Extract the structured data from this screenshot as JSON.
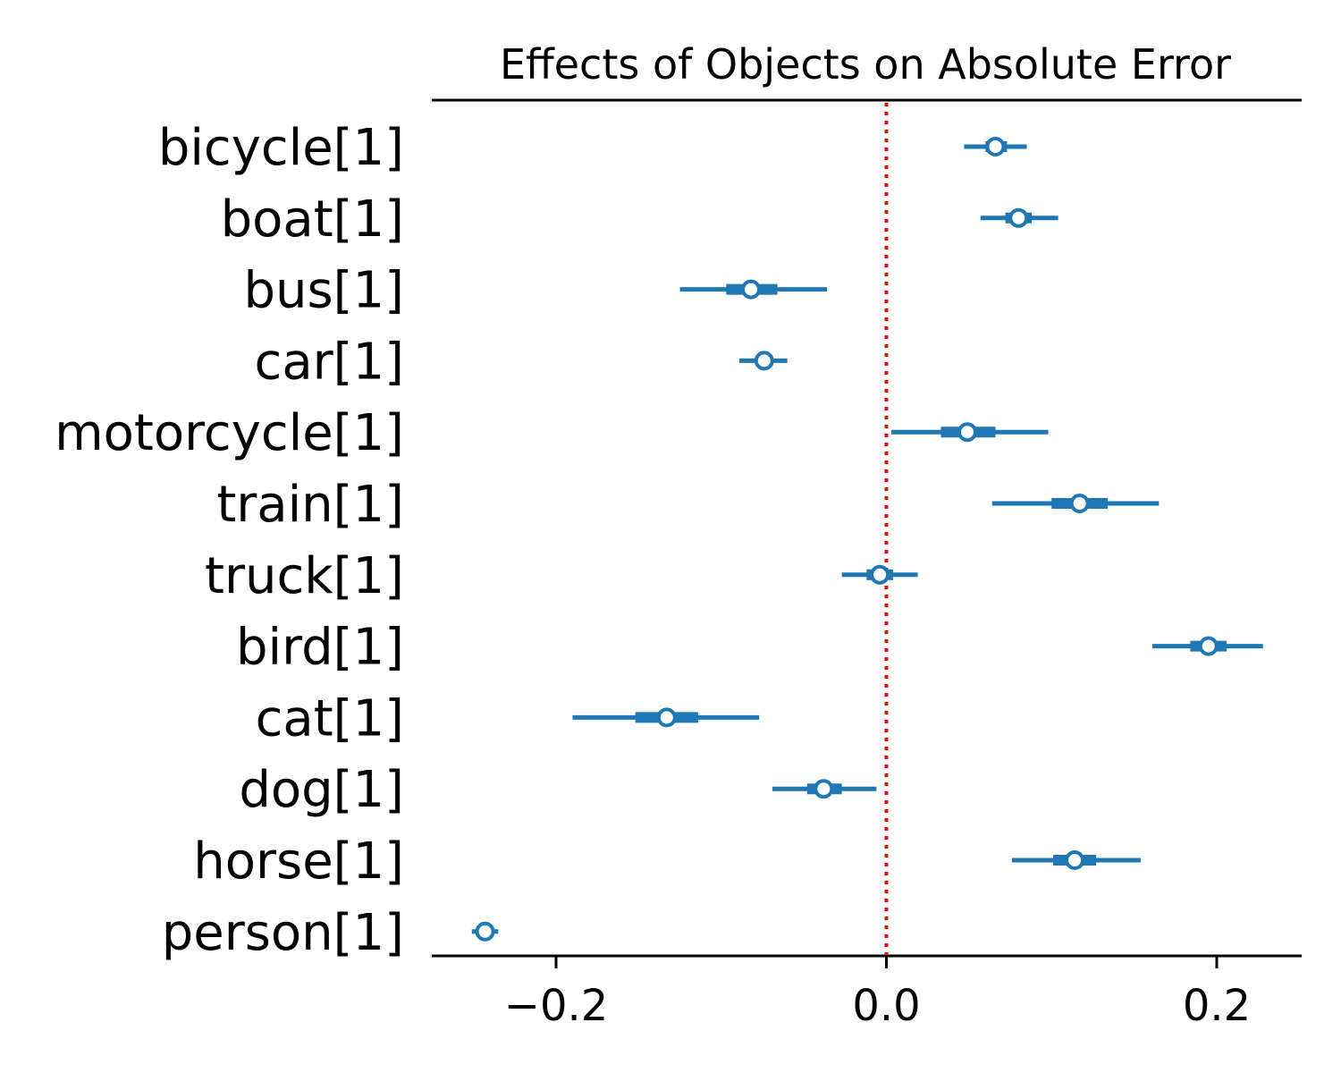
{
  "chart_data": {
    "type": "forest",
    "title": "Effects of Objects on Absolute Error",
    "xlabel": "",
    "ylabel": "",
    "xlim": [
      -0.27,
      0.25
    ],
    "xticks": [
      -0.2,
      0.0,
      0.2
    ],
    "xtick_labels": [
      "−0.2",
      "0.0",
      "0.2"
    ],
    "reference_line": {
      "x": 0.0,
      "style": "dotted",
      "color": "#ff0000"
    },
    "grid": false,
    "color": "#1f77b4",
    "categories": [
      "bicycle[1]",
      "boat[1]",
      "bus[1]",
      "car[1]",
      "motorcycle[1]",
      "train[1]",
      "truck[1]",
      "bird[1]",
      "cat[1]",
      "dog[1]",
      "horse[1]",
      "person[1]"
    ],
    "points": [
      {
        "name": "bicycle[1]",
        "mean": 0.066,
        "hdi_low": 0.047,
        "hdi_high": 0.085,
        "iqr_low": 0.06,
        "iqr_high": 0.073
      },
      {
        "name": "boat[1]",
        "mean": 0.08,
        "hdi_low": 0.057,
        "hdi_high": 0.104,
        "iqr_low": 0.072,
        "iqr_high": 0.088
      },
      {
        "name": "bus[1]",
        "mean": -0.082,
        "hdi_low": -0.125,
        "hdi_high": -0.036,
        "iqr_low": -0.097,
        "iqr_high": -0.066
      },
      {
        "name": "car[1]",
        "mean": -0.074,
        "hdi_low": -0.089,
        "hdi_high": -0.06,
        "iqr_low": -0.079,
        "iqr_high": -0.069
      },
      {
        "name": "motorcycle[1]",
        "mean": 0.049,
        "hdi_low": 0.003,
        "hdi_high": 0.098,
        "iqr_low": 0.033,
        "iqr_high": 0.066
      },
      {
        "name": "train[1]",
        "mean": 0.117,
        "hdi_low": 0.064,
        "hdi_high": 0.165,
        "iqr_low": 0.1,
        "iqr_high": 0.134
      },
      {
        "name": "truck[1]",
        "mean": -0.004,
        "hdi_low": -0.027,
        "hdi_high": 0.019,
        "iqr_low": -0.012,
        "iqr_high": 0.004
      },
      {
        "name": "bird[1]",
        "mean": 0.195,
        "hdi_low": 0.161,
        "hdi_high": 0.228,
        "iqr_low": 0.184,
        "iqr_high": 0.206
      },
      {
        "name": "cat[1]",
        "mean": -0.133,
        "hdi_low": -0.19,
        "hdi_high": -0.077,
        "iqr_low": -0.152,
        "iqr_high": -0.114
      },
      {
        "name": "dog[1]",
        "mean": -0.038,
        "hdi_low": -0.069,
        "hdi_high": -0.006,
        "iqr_low": -0.048,
        "iqr_high": -0.027
      },
      {
        "name": "horse[1]",
        "mean": 0.114,
        "hdi_low": 0.076,
        "hdi_high": 0.154,
        "iqr_low": 0.101,
        "iqr_high": 0.127
      },
      {
        "name": "person[1]",
        "mean": -0.243,
        "hdi_low": -0.251,
        "hdi_high": -0.235,
        "iqr_low": -0.246,
        "iqr_high": -0.24
      }
    ]
  }
}
